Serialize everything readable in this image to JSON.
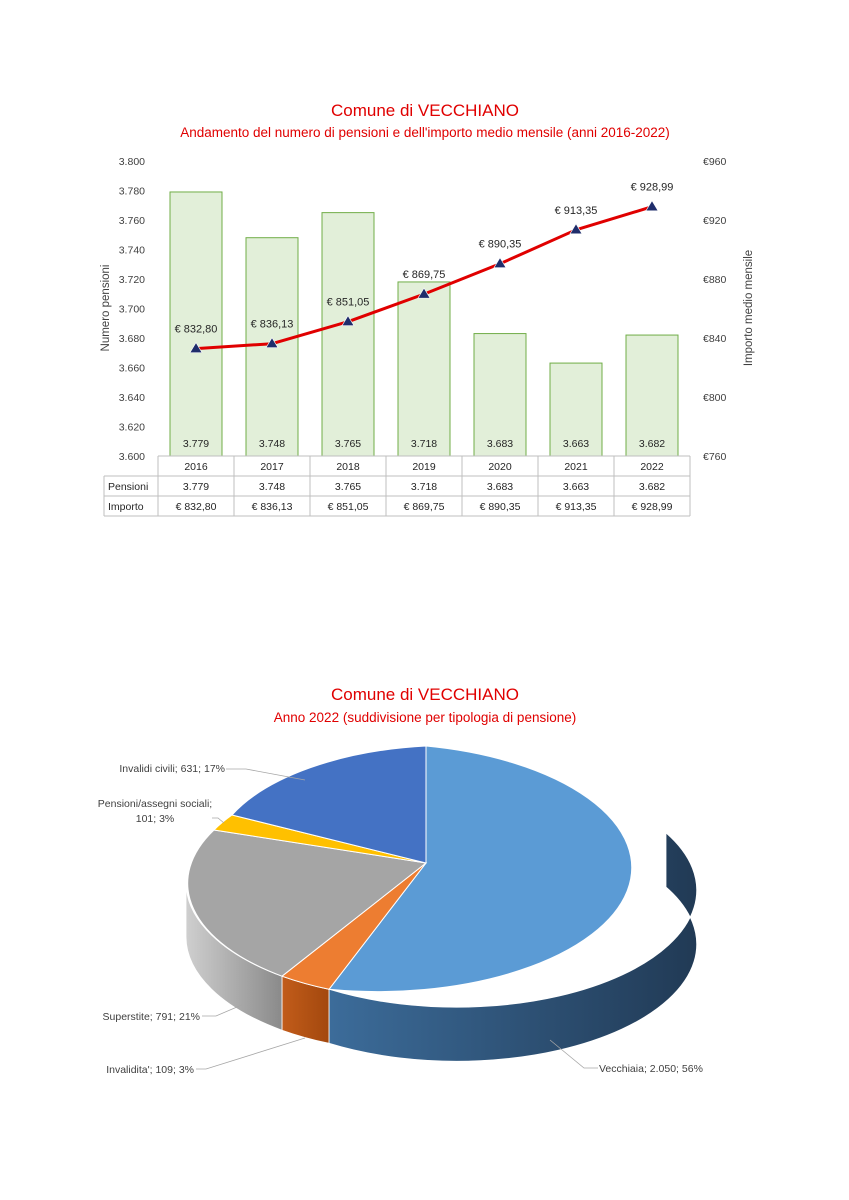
{
  "chart_data": [
    {
      "type": "bar",
      "title": "Comune di VECCHIANO",
      "subtitle": "Andamento del numero di pensioni e dell'importo medio mensile (anni 2016-2022)",
      "categories": [
        "2016",
        "2017",
        "2018",
        "2019",
        "2020",
        "2021",
        "2022"
      ],
      "series": [
        {
          "name": "Pensioni",
          "type": "bar",
          "axis": "left",
          "values": [
            3779,
            3748,
            3765,
            3718,
            3683,
            3663,
            3682
          ],
          "labels": [
            "3.779",
            "3.748",
            "3.765",
            "3.718",
            "3.683",
            "3.663",
            "3.682"
          ],
          "color": "#e2efd9",
          "border": "#70ad47"
        },
        {
          "name": "Importo",
          "type": "line",
          "axis": "right",
          "values": [
            832.8,
            836.13,
            851.05,
            869.75,
            890.35,
            913.35,
            928.99
          ],
          "labels": [
            "€ 832,80",
            "€ 836,13",
            "€ 851,05",
            "€ 869,75",
            "€ 890,35",
            "€ 913,35",
            "€ 928,99"
          ],
          "color": "#e00000",
          "marker_color": "#1f2d6b"
        }
      ],
      "ylabel": "Numero pensioni",
      "y2label": "Importo medio mensile",
      "ylim": [
        3600,
        3800
      ],
      "y2lim": [
        760,
        960
      ],
      "yticks": [
        "3.600",
        "3.620",
        "3.640",
        "3.660",
        "3.680",
        "3.700",
        "3.720",
        "3.740",
        "3.760",
        "3.780",
        "3.800"
      ],
      "y2ticks": [
        "€760",
        "€800",
        "€840",
        "€880",
        "€920",
        "€960"
      ],
      "data_table": true,
      "legend": "data table rows"
    },
    {
      "type": "pie",
      "title": "Comune di VECCHIANO",
      "subtitle": "Anno 2022 (suddivisione per tipologia di pensione)",
      "slices": [
        {
          "name": "Vecchiaia",
          "value": 2050,
          "percent": 56,
          "label": "Vecchiaia; 2.050; 56%",
          "color": "#5b9bd5"
        },
        {
          "name": "Invalidita'",
          "value": 109,
          "percent": 3,
          "label": "Invalidita'; 109; 3%",
          "color": "#ed7d31"
        },
        {
          "name": "Superstite",
          "value": 791,
          "percent": 21,
          "label": "Superstite; 791; 21%",
          "color": "#a5a5a5"
        },
        {
          "name": "Pensioni/assegni sociali",
          "value": 101,
          "percent": 3,
          "label_lines": [
            "Pensioni/assegni sociali;",
            "101; 3%"
          ],
          "color": "#ffc000"
        },
        {
          "name": "Invalidi civili",
          "value": 631,
          "percent": 17,
          "label": "Invalidi civili; 631; 17%",
          "color": "#4472c4"
        }
      ],
      "style": "3d",
      "legend": "none (data labels)"
    }
  ]
}
